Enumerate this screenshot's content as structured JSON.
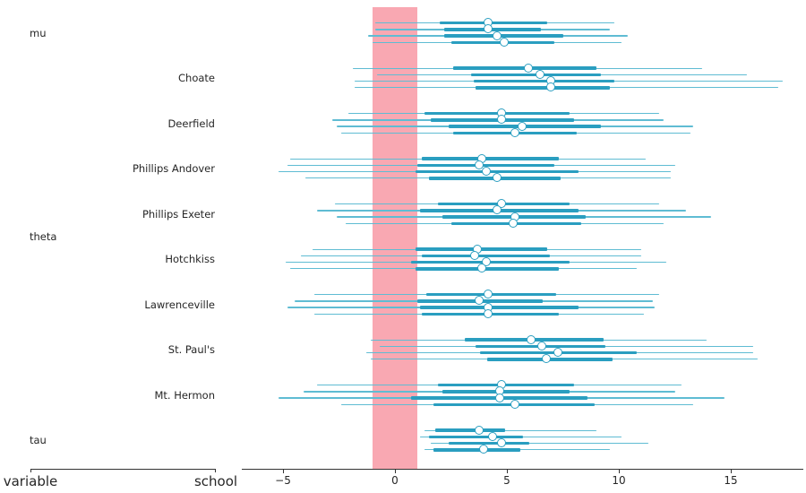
{
  "axis_labels": {
    "variable": "variable",
    "school": "school"
  },
  "chart_data": {
    "type": "forest",
    "title": "",
    "layout_hints": {
      "orientation": "horizontal",
      "legend": "none",
      "grid": "off",
      "xlim": [
        -6.8,
        18.0
      ],
      "rope_interval": [
        -1,
        1
      ],
      "chains_per_row": 4,
      "interval_meaning": "thin = wide credible interval, thick = inner quartile interval, circle = median"
    },
    "colors": {
      "rope": "#f9a8b2",
      "interval_thin": "#5fbcd3",
      "interval_thick": "#2a9ec0",
      "marker_fill": "#ffffff",
      "marker_stroke": "#2a9ec0",
      "axis": "#333333",
      "text": "#262626"
    },
    "x_axis": {
      "tick_values": [
        -5,
        0,
        5,
        10,
        15
      ],
      "tick_labels": [
        "−5",
        "0",
        "5",
        "10",
        "15"
      ]
    },
    "rows": [
      {
        "variable": "mu",
        "school": "",
        "chains": [
          [
            -0.9,
            2.0,
            4.2,
            6.8,
            9.8
          ],
          [
            -0.9,
            2.2,
            4.2,
            6.5,
            9.6
          ],
          [
            -1.2,
            2.2,
            4.6,
            7.5,
            10.4
          ],
          [
            -1.0,
            2.5,
            4.9,
            7.1,
            10.1
          ]
        ]
      },
      {
        "variable": "theta",
        "school": "Choate",
        "chains": [
          [
            -1.9,
            2.6,
            6.0,
            9.0,
            13.7
          ],
          [
            -0.8,
            3.4,
            6.5,
            9.2,
            15.7
          ],
          [
            -1.8,
            3.5,
            7.0,
            9.8,
            17.3
          ],
          [
            -1.8,
            3.6,
            7.0,
            9.6,
            17.1
          ]
        ]
      },
      {
        "variable": "theta",
        "school": "Deerfield",
        "chains": [
          [
            -2.1,
            1.3,
            4.8,
            7.8,
            11.8
          ],
          [
            -2.8,
            1.6,
            4.8,
            8.0,
            12.0
          ],
          [
            -2.6,
            2.4,
            5.7,
            9.2,
            13.3
          ],
          [
            -2.4,
            2.6,
            5.4,
            8.1,
            13.2
          ]
        ]
      },
      {
        "variable": "theta",
        "school": "Phillips Andover",
        "chains": [
          [
            -4.7,
            1.2,
            3.9,
            7.3,
            11.2
          ],
          [
            -4.8,
            1.0,
            3.8,
            7.1,
            12.5
          ],
          [
            -5.2,
            0.9,
            4.1,
            8.2,
            12.3
          ],
          [
            -4.0,
            1.5,
            4.6,
            7.4,
            12.3
          ]
        ]
      },
      {
        "variable": "theta",
        "school": "Phillips Exeter",
        "chains": [
          [
            -2.7,
            1.9,
            4.8,
            7.8,
            11.8
          ],
          [
            -3.5,
            1.1,
            4.6,
            8.2,
            13.0
          ],
          [
            -2.6,
            2.1,
            5.4,
            8.5,
            14.1
          ],
          [
            -2.2,
            2.5,
            5.3,
            8.3,
            12.0
          ]
        ]
      },
      {
        "variable": "theta",
        "school": "Hotchkiss",
        "chains": [
          [
            -3.7,
            0.9,
            3.7,
            6.8,
            11.0
          ],
          [
            -4.2,
            1.2,
            3.6,
            6.9,
            11.0
          ],
          [
            -4.9,
            0.7,
            4.1,
            7.8,
            12.1
          ],
          [
            -4.7,
            0.9,
            3.9,
            7.3,
            10.8
          ]
        ]
      },
      {
        "variable": "theta",
        "school": "Lawrenceville",
        "chains": [
          [
            -3.6,
            1.4,
            4.2,
            7.2,
            11.8
          ],
          [
            -4.5,
            1.0,
            3.8,
            6.6,
            11.5
          ],
          [
            -4.8,
            1.1,
            4.2,
            8.2,
            11.6
          ],
          [
            -3.6,
            1.2,
            4.2,
            7.3,
            11.1
          ]
        ]
      },
      {
        "variable": "theta",
        "school": "St. Paul's",
        "chains": [
          [
            -1.1,
            3.1,
            6.1,
            9.3,
            13.9
          ],
          [
            -0.7,
            3.6,
            6.6,
            9.4,
            16.0
          ],
          [
            -1.3,
            3.8,
            7.3,
            10.8,
            16.0
          ],
          [
            -1.1,
            4.1,
            6.8,
            9.7,
            16.2
          ]
        ]
      },
      {
        "variable": "theta",
        "school": "Mt. Hermon",
        "chains": [
          [
            -3.5,
            1.9,
            4.8,
            8.0,
            12.8
          ],
          [
            -4.1,
            2.1,
            4.7,
            7.8,
            12.5
          ],
          [
            -5.2,
            0.7,
            4.7,
            8.6,
            14.7
          ],
          [
            -2.4,
            1.7,
            5.4,
            8.9,
            13.3
          ]
        ]
      },
      {
        "variable": "tau",
        "school": "",
        "chains": [
          [
            1.3,
            1.8,
            3.8,
            4.9,
            9.0
          ],
          [
            1.1,
            1.5,
            4.4,
            5.7,
            10.1
          ],
          [
            1.6,
            2.4,
            4.8,
            6.0,
            11.3
          ],
          [
            1.3,
            1.7,
            4.0,
            5.6,
            9.6
          ]
        ]
      }
    ]
  }
}
